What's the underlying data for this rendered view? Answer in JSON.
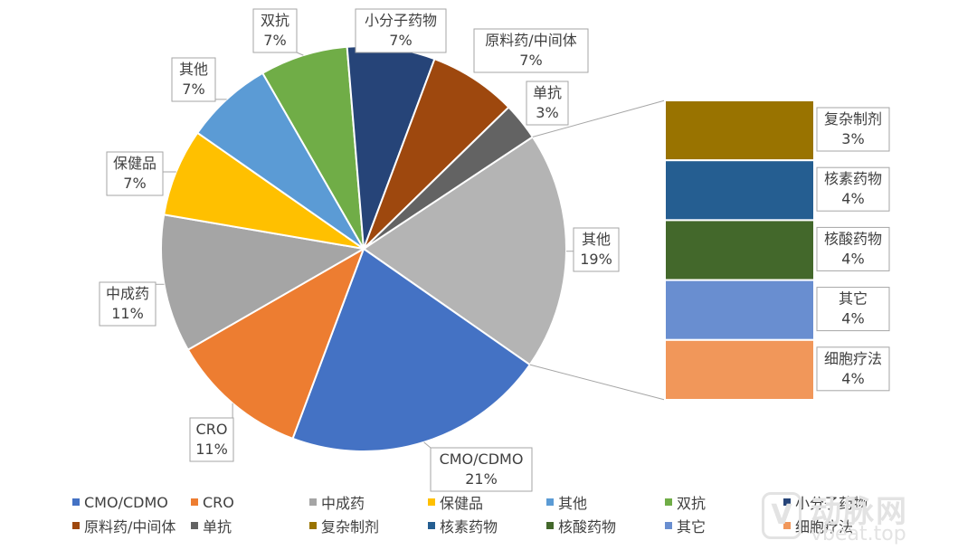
{
  "chart_data": {
    "type": "pie",
    "title": "",
    "slices": [
      {
        "label": "其他",
        "value": 19,
        "value_label": "19%",
        "color": "#b4b4b4"
      },
      {
        "label": "CMO/CDMO",
        "value": 21,
        "value_label": "21%",
        "color": "#4472c4"
      },
      {
        "label": "CRO",
        "value": 11,
        "value_label": "11%",
        "color": "#ed7d31"
      },
      {
        "label": "中成药",
        "value": 11,
        "value_label": "11%",
        "color": "#a5a5a5"
      },
      {
        "label": "保健品",
        "value": 7,
        "value_label": "7%",
        "color": "#ffc000"
      },
      {
        "label": "其他",
        "value": 7,
        "value_label": "7%",
        "color": "#5b9bd5"
      },
      {
        "label": "双抗",
        "value": 7,
        "value_label": "7%",
        "color": "#70ad47"
      },
      {
        "label": "小分子药物",
        "value": 7,
        "value_label": "7%",
        "color": "#264478"
      },
      {
        "label": "原料药/中间体",
        "value": 7,
        "value_label": "7%",
        "color": "#9e480e"
      },
      {
        "label": "单抗",
        "value": 3,
        "value_label": "3%",
        "color": "#636363"
      }
    ],
    "breakout": {
      "of_slice": "其他",
      "segments": [
        {
          "label": "复杂制剂",
          "value": 3,
          "value_label": "3%",
          "color": "#997300"
        },
        {
          "label": "核素药物",
          "value": 4,
          "value_label": "4%",
          "color": "#255e91"
        },
        {
          "label": "核酸药物",
          "value": 4,
          "value_label": "4%",
          "color": "#43682b"
        },
        {
          "label": "其它",
          "value": 4,
          "value_label": "4%",
          "color": "#698ed0"
        },
        {
          "label": "细胞疗法",
          "value": 4,
          "value_label": "4%",
          "color": "#f1975a"
        }
      ]
    },
    "legend": {
      "position": "bottom",
      "items": [
        {
          "label": "CMO/CDMO",
          "color": "#4472c4"
        },
        {
          "label": "CRO",
          "color": "#ed7d31"
        },
        {
          "label": "中成药",
          "color": "#a5a5a5"
        },
        {
          "label": "保健品",
          "color": "#ffc000"
        },
        {
          "label": "其他",
          "color": "#5b9bd5"
        },
        {
          "label": "双抗",
          "color": "#70ad47"
        },
        {
          "label": "小分子药物",
          "color": "#264478"
        },
        {
          "label": "原料药/中间体",
          "color": "#9e480e"
        },
        {
          "label": "单抗",
          "color": "#636363"
        },
        {
          "label": "复杂制剂",
          "color": "#997300"
        },
        {
          "label": "核素药物",
          "color": "#255e91"
        },
        {
          "label": "核酸药物",
          "color": "#43682b"
        },
        {
          "label": "其它",
          "color": "#698ed0"
        },
        {
          "label": "细胞疗法",
          "color": "#f1975a"
        }
      ]
    }
  },
  "watermark": {
    "logo_glyph": "V",
    "brand": "动脉网",
    "site": "vbeat.top"
  }
}
